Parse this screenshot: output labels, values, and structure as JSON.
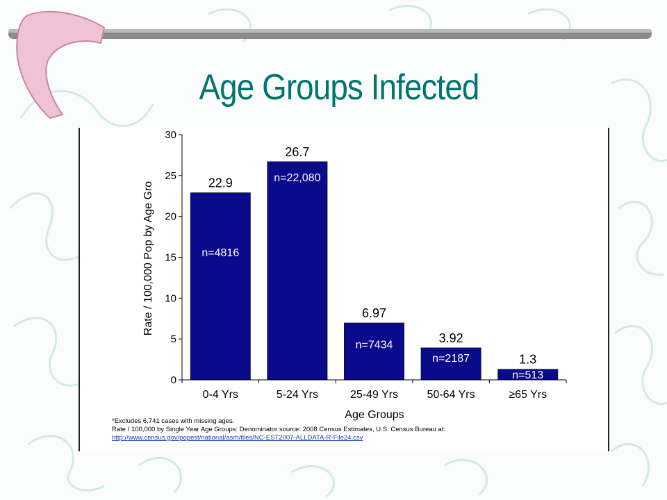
{
  "slide": {
    "title": "Age Groups Infected"
  },
  "chart_data": {
    "type": "bar",
    "categories": [
      "0-4 Yrs",
      "5-24 Yrs",
      "25-49 Yrs",
      "50-64 Yrs",
      "≥65  Yrs"
    ],
    "values": [
      22.9,
      26.7,
      6.97,
      3.92,
      1.3
    ],
    "value_labels": [
      "22.9",
      "26.7",
      "6.97",
      "3.92",
      "1.3"
    ],
    "n_labels": [
      "n=4816",
      "n=22,080",
      "n=7434",
      "n=2187",
      "n=513"
    ],
    "xlabel": "Age Groups",
    "ylabel": "Rate / 100,000 Pop by Age Gro",
    "ylim": [
      0,
      30
    ],
    "yticks": [
      0,
      5,
      10,
      15,
      20,
      25,
      30
    ],
    "bar_color": "#0a0a8c",
    "grid": false
  },
  "footnotes": {
    "line1": "*Excludes 6,741 cases with missing ages.",
    "line2": "Rate / 100,000 by Single Year Age Groups: Denominator source: 2008 Census Estimates, U.S. Census Bureau at:",
    "link": "http://www.census.gov/popest/national/asrh/files/NC-EST2007-ALLDATA-R-File24.csv"
  },
  "colors": {
    "title": "#00756f",
    "accent_pink": "#e8a7c2",
    "bar_gray": "#8a8a8a"
  }
}
